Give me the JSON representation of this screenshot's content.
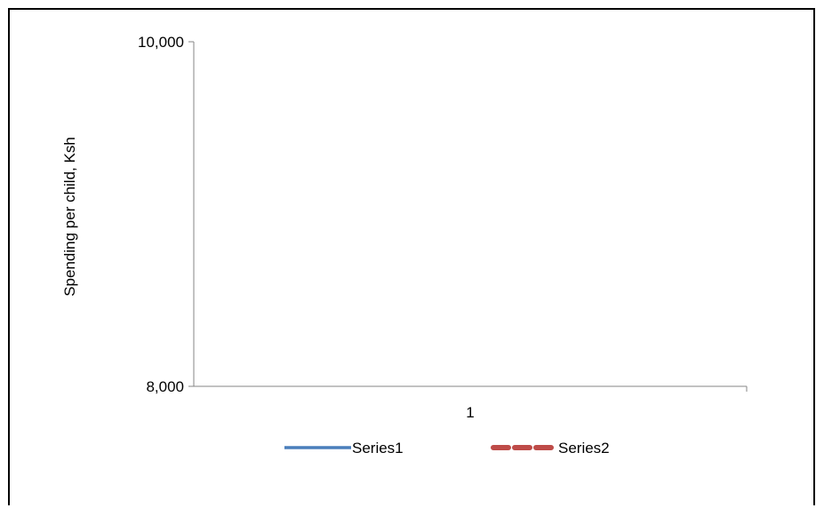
{
  "chart_data": {
    "type": "line",
    "title": "",
    "xlabel": "",
    "ylabel": "Spending per child, Ksh",
    "categories": [
      "1"
    ],
    "ylim": [
      8000,
      10000
    ],
    "yticks": [
      "8,000",
      "10,000"
    ],
    "series": [
      {
        "name": "Series1",
        "values": [
          null
        ],
        "color": "#4a7ebb",
        "dash": "solid"
      },
      {
        "name": "Series2",
        "values": [
          null
        ],
        "color": "#be4b48",
        "dash": "dashed"
      }
    ],
    "grid": false,
    "legend": "bottom"
  }
}
